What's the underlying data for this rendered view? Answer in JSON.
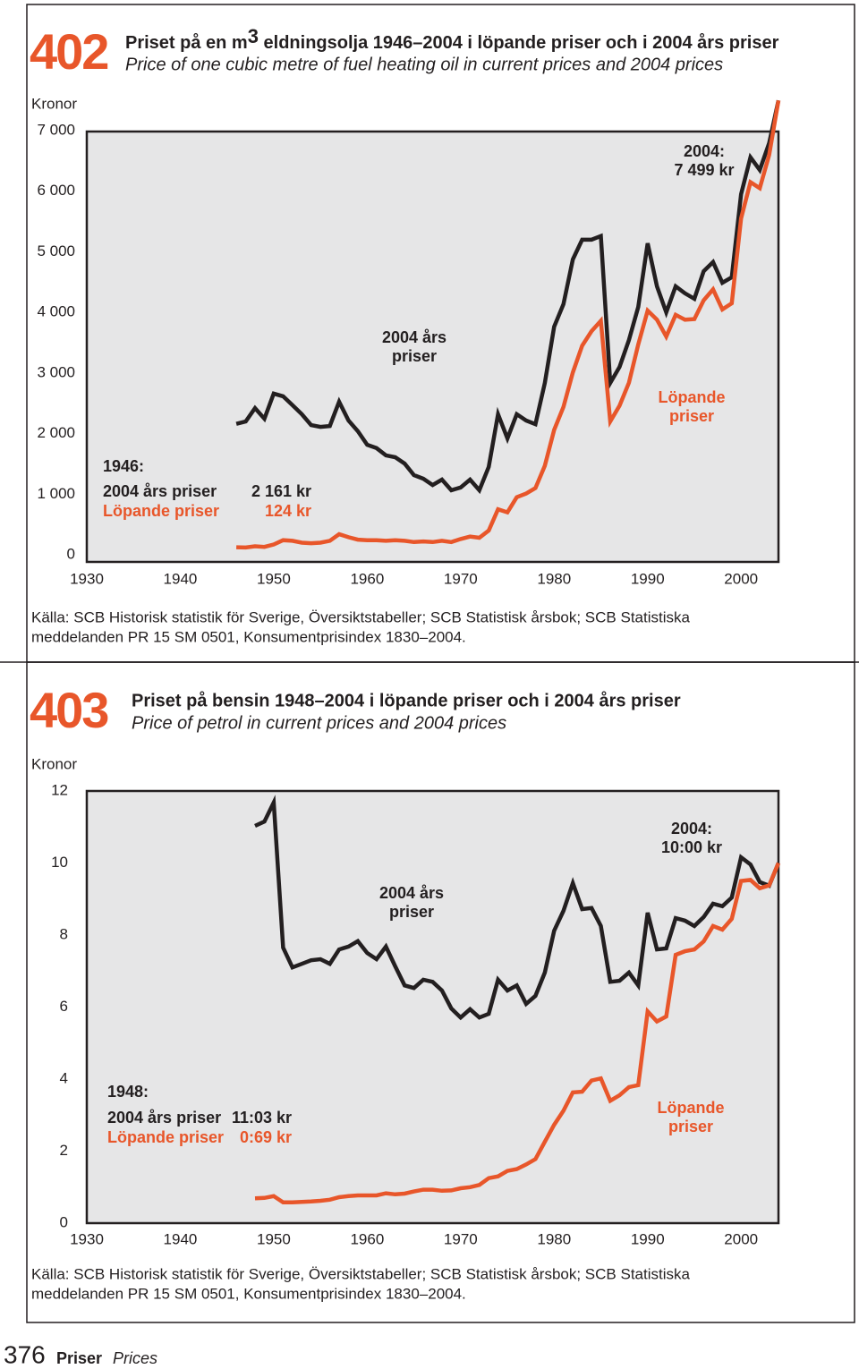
{
  "chart_data": [
    {
      "type": "line",
      "number": "402",
      "title": [
        "Priset på  en m",
        "3",
        " eldningsolja 1946–2004 i löpande priser och i 2004 års priser"
      ],
      "subtitle": "Price of one cubic metre of fuel heating oil in current prices and 2004 prices",
      "y_label": "Kronor",
      "x": [
        1946,
        1947,
        1948,
        1949,
        1950,
        1951,
        1952,
        1953,
        1954,
        1955,
        1956,
        1957,
        1958,
        1959,
        1960,
        1961,
        1962,
        1963,
        1964,
        1965,
        1966,
        1967,
        1968,
        1969,
        1970,
        1971,
        1972,
        1973,
        1974,
        1975,
        1976,
        1977,
        1978,
        1979,
        1980,
        1981,
        1982,
        1983,
        1984,
        1985,
        1986,
        1987,
        1988,
        1989,
        1990,
        1991,
        1992,
        1993,
        1994,
        1995,
        1996,
        1997,
        1998,
        1999,
        2000,
        2001,
        2002,
        2003,
        2004
      ],
      "series": [
        {
          "name": "2004 års priser",
          "color": "#231f20",
          "values": [
            2161,
            2200,
            2420,
            2245,
            2660,
            2615,
            2470,
            2320,
            2140,
            2110,
            2125,
            2525,
            2215,
            2040,
            1815,
            1760,
            1640,
            1610,
            1505,
            1315,
            1255,
            1150,
            1240,
            1065,
            1110,
            1240,
            1065,
            1450,
            2320,
            1920,
            2320,
            2215,
            2155,
            2835,
            3765,
            4135,
            4875,
            5200,
            5200,
            5260,
            2835,
            3100,
            3545,
            4090,
            5140,
            4430,
            4000,
            4430,
            4315,
            4225,
            4680,
            4830,
            4490,
            4580,
            5950,
            6560,
            6350,
            6795,
            7499
          ]
        },
        {
          "name": "Löpande priser",
          "color": "#e8562a",
          "values": [
            124,
            120,
            140,
            130,
            170,
            240,
            230,
            200,
            190,
            200,
            230,
            340,
            290,
            250,
            240,
            240,
            230,
            240,
            230,
            210,
            220,
            210,
            230,
            210,
            260,
            300,
            280,
            400,
            750,
            700,
            950,
            1010,
            1100,
            1470,
            2060,
            2440,
            3010,
            3450,
            3690,
            3860,
            2200,
            2460,
            2840,
            3470,
            4030,
            3880,
            3600,
            3960,
            3880,
            3890,
            4200,
            4380,
            4050,
            4150,
            5550,
            6150,
            6050,
            6600,
            7499
          ]
        }
      ],
      "xlim": [
        1930,
        2004
      ],
      "xticks": [
        1930,
        1940,
        1950,
        1960,
        1970,
        1980,
        1990,
        2000
      ],
      "ylim": [
        0,
        7000
      ],
      "yticks": [
        0,
        {
          "value": 1000,
          "label": "1 000"
        },
        {
          "value": 2000,
          "label": "2 000"
        },
        {
          "value": 3000,
          "label": "3 000"
        },
        {
          "value": 4000,
          "label": "4 000"
        },
        {
          "value": 5000,
          "label": "5 000"
        },
        {
          "value": 6000,
          "label": "6 000"
        },
        {
          "value": 7000,
          "label": "7 000"
        }
      ],
      "annotations": [
        {
          "lines": [
            "2004:",
            "7 499 kr"
          ],
          "color": "#231f20"
        },
        {
          "lines": [
            "2004 års",
            "priser"
          ],
          "color": "#231f20"
        },
        {
          "lines": [
            "Löpande",
            "priser"
          ],
          "color": "#e8562a"
        },
        {
          "lines": [
            "1946:"
          ],
          "color": "#231f20"
        },
        {
          "lines": [
            "2 161 kr"
          ],
          "color": "#231f20"
        },
        {
          "lines": [
            "124 kr"
          ],
          "color": "#e8562a"
        }
      ],
      "source": [
        "Källa: SCB Historisk statistik för Sverige, Översiktstabeller; SCB Statistisk årsbok; SCB Statistiska",
        "meddelanden PR 15 SM 0501, Konsumentprisindex 1830–2004."
      ]
    },
    {
      "type": "line",
      "number": "403",
      "title": "Priset på bensin 1948–2004 i löpande priser och i 2004 års priser",
      "subtitle": "Price of petrol in current prices and 2004 prices",
      "y_label": "Kronor",
      "x": [
        1948,
        1949,
        1950,
        1951,
        1952,
        1953,
        1954,
        1955,
        1956,
        1957,
        1958,
        1959,
        1960,
        1961,
        1962,
        1963,
        1964,
        1965,
        1966,
        1967,
        1968,
        1969,
        1970,
        1971,
        1972,
        1973,
        1974,
        1975,
        1976,
        1977,
        1978,
        1979,
        1980,
        1981,
        1982,
        1983,
        1984,
        1985,
        1986,
        1987,
        1988,
        1989,
        1990,
        1991,
        1992,
        1993,
        1994,
        1995,
        1996,
        1997,
        1998,
        1999,
        2000,
        2001,
        2002,
        2003,
        2004
      ],
      "series": [
        {
          "name": "2004 års priser",
          "color": "#231f20",
          "values": [
            11.03,
            11.15,
            11.68,
            7.65,
            7.1,
            7.2,
            7.3,
            7.33,
            7.2,
            7.6,
            7.68,
            7.83,
            7.5,
            7.33,
            7.68,
            7.13,
            6.6,
            6.53,
            6.76,
            6.7,
            6.46,
            5.96,
            5.71,
            5.94,
            5.71,
            5.81,
            6.76,
            6.46,
            6.6,
            6.09,
            6.31,
            6.96,
            8.12,
            8.67,
            9.44,
            8.72,
            8.75,
            8.25,
            6.7,
            6.73,
            6.96,
            6.6,
            8.62,
            7.6,
            7.63,
            8.47,
            8.4,
            8.25,
            8.5,
            8.87,
            8.8,
            9.04,
            10.16,
            9.96,
            9.47,
            9.37,
            10.0
          ]
        },
        {
          "name": "Löpande priser",
          "color": "#e8562a",
          "values": [
            0.69,
            0.7,
            0.75,
            0.58,
            0.58,
            0.59,
            0.6,
            0.62,
            0.65,
            0.72,
            0.75,
            0.77,
            0.77,
            0.77,
            0.83,
            0.8,
            0.82,
            0.88,
            0.93,
            0.93,
            0.9,
            0.91,
            0.97,
            1.0,
            1.06,
            1.25,
            1.3,
            1.45,
            1.5,
            1.63,
            1.78,
            2.26,
            2.73,
            3.12,
            3.63,
            3.65,
            3.96,
            4.02,
            3.4,
            3.55,
            3.78,
            3.83,
            5.88,
            5.6,
            5.74,
            7.45,
            7.55,
            7.6,
            7.82,
            8.25,
            8.15,
            8.45,
            9.5,
            9.53,
            9.3,
            9.38,
            10.0
          ]
        }
      ],
      "xlim": [
        1930,
        2004
      ],
      "xticks": [
        1930,
        1940,
        1950,
        1960,
        1970,
        1980,
        1990,
        2000
      ],
      "ylim": [
        0,
        12
      ],
      "yticks": [
        0,
        2,
        4,
        6,
        8,
        10,
        12
      ],
      "annotations": [
        {
          "lines": [
            "2004:",
            "10:00 kr"
          ],
          "color": "#231f20"
        },
        {
          "lines": [
            "2004 års",
            "priser"
          ],
          "color": "#231f20"
        },
        {
          "lines": [
            "Löpande",
            "priser"
          ],
          "color": "#e8562a"
        },
        {
          "lines": [
            "1948:"
          ],
          "color": "#231f20"
        },
        {
          "lines": [
            "11:03 kr"
          ],
          "color": "#231f20"
        },
        {
          "lines": [
            "0:69 kr"
          ],
          "color": "#e8562a"
        }
      ],
      "source": [
        "Källa: SCB Historisk statistik för Sverige, Översiktstabeller; SCB Statistisk årsbok; SCB Statistiska",
        "meddelanden PR 15 SM 0501, Konsumentprisindex 1830–2004."
      ]
    }
  ],
  "footer": {
    "page": "376",
    "section": "Priser",
    "section_en": "Prices"
  }
}
